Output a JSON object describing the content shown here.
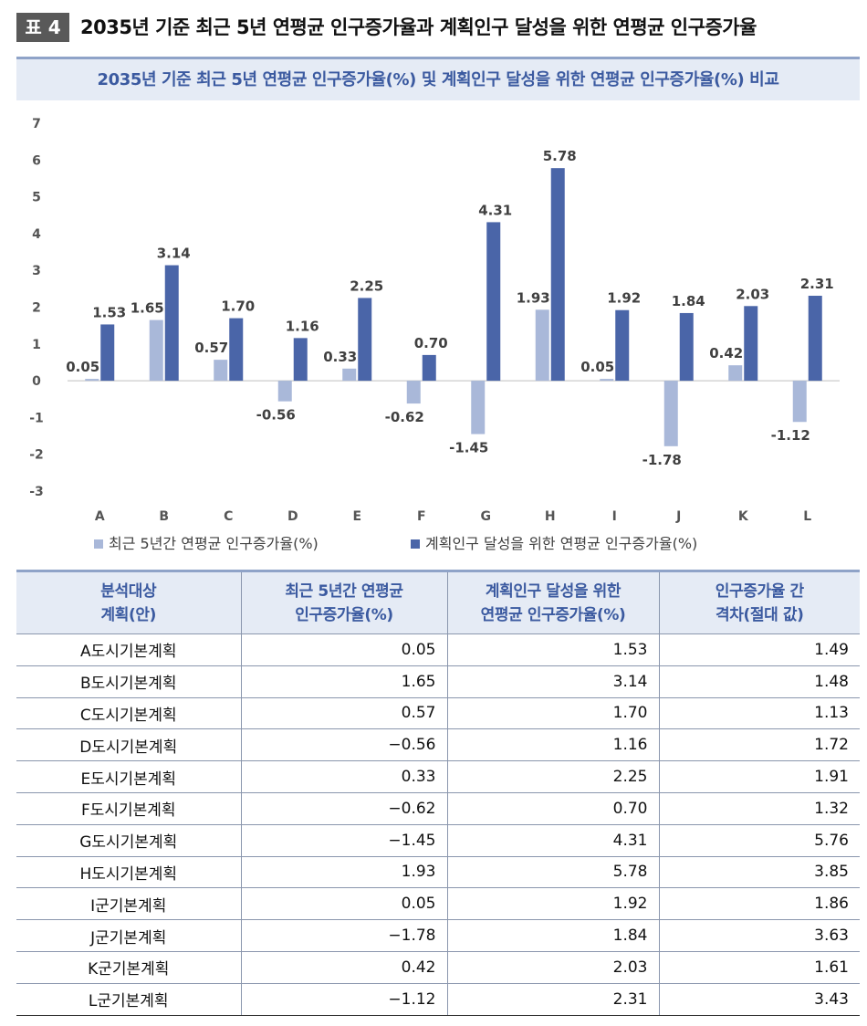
{
  "header": {
    "badge": "표 4",
    "title": "2035년 기준 최근 5년 연평균 인구증가율과 계획인구 달성을 위한 연평균 인구증가율"
  },
  "colors": {
    "series1": "#a9b8d9",
    "series2": "#4a65a8",
    "accent": "#3b5aa0",
    "header_bg": "#e5ebf5"
  },
  "chart_data": {
    "type": "bar",
    "title": "2035년 기준 최근 5년 연평균 인구증가율(%) 및 계획인구 달성을 위한 연평균 인구증가율(%) 비교",
    "categories": [
      "A",
      "B",
      "C",
      "D",
      "E",
      "F",
      "G",
      "H",
      "I",
      "J",
      "K",
      "L"
    ],
    "series": [
      {
        "name": "최근 5년간 연평균 인구증가율(%)",
        "values": [
          0.05,
          1.65,
          0.57,
          -0.56,
          0.33,
          -0.62,
          -1.45,
          1.93,
          0.05,
          -1.78,
          0.42,
          -1.12
        ],
        "labels": [
          "0.05",
          "1.65",
          "0.57",
          "-0.56",
          "0.33",
          "-0.62",
          "-1.45",
          "1.93",
          "0.05",
          "-1.78",
          "0.42",
          "-1.12"
        ]
      },
      {
        "name": "계획인구 달성을 위한 연평균 인구증가율(%)",
        "values": [
          1.53,
          3.14,
          1.7,
          1.16,
          2.25,
          0.7,
          4.31,
          5.78,
          1.92,
          1.84,
          2.03,
          2.31
        ],
        "labels": [
          "1.53",
          "3.14",
          "1.70",
          "1.16",
          "2.25",
          "0.70",
          "4.31",
          "5.78",
          "1.92",
          "1.84",
          "2.03",
          "2.31"
        ]
      }
    ],
    "ylim": [
      -3,
      7
    ],
    "yticks": [
      7,
      6,
      5,
      4,
      3,
      2,
      1,
      0,
      -1,
      -2,
      -3
    ],
    "ytick_labels": [
      "7",
      "6",
      "5",
      "4",
      "3",
      "2",
      "1",
      "0",
      "-1",
      "-2",
      "-3"
    ],
    "grid": false,
    "legend": "bottom"
  },
  "table": {
    "headers": [
      [
        "분석대상",
        "계획(안)"
      ],
      [
        "최근 5년간 연평균",
        "인구증가율(%)"
      ],
      [
        "계획인구 달성을 위한",
        "연평균 인구증가율(%)"
      ],
      [
        "인구증가율 간",
        "격차(절대 값)"
      ]
    ],
    "rows": [
      [
        "A도시기본계획",
        "0.05",
        "1.53",
        "1.49"
      ],
      [
        "B도시기본계획",
        "1.65",
        "3.14",
        "1.48"
      ],
      [
        "C도시기본계획",
        "0.57",
        "1.70",
        "1.13"
      ],
      [
        "D도시기본계획",
        "−0.56",
        "1.16",
        "1.72"
      ],
      [
        "E도시기본계획",
        "0.33",
        "2.25",
        "1.91"
      ],
      [
        "F도시기본계획",
        "−0.62",
        "0.70",
        "1.32"
      ],
      [
        "G도시기본계획",
        "−1.45",
        "4.31",
        "5.76"
      ],
      [
        "H도시기본계획",
        "1.93",
        "5.78",
        "3.85"
      ],
      [
        "I군기본계획",
        "0.05",
        "1.92",
        "1.86"
      ],
      [
        "J군기본계획",
        "−1.78",
        "1.84",
        "3.63"
      ],
      [
        "K군기본계획",
        "0.42",
        "2.03",
        "1.61"
      ],
      [
        "L군기본계획",
        "−1.12",
        "2.31",
        "3.43"
      ]
    ]
  }
}
